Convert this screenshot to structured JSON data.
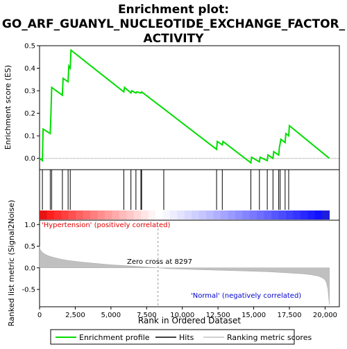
{
  "chart_data": {
    "type": "line",
    "title_lines": [
      "Enrichment plot:",
      "GO_ARF_GUANYL_NUCLEOTIDE_EXCHANGE_FACTOR_",
      "ACTIVITY"
    ],
    "es_panel": {
      "ylabel": "Enrichment score (ES)",
      "ylim": [
        -0.05,
        0.5
      ],
      "yticks": [
        0.0,
        0.1,
        0.2,
        0.3,
        0.4,
        0.5
      ],
      "ytick_labels": [
        "0.0",
        "0.1",
        "0.2",
        "0.3",
        "0.4",
        "0.5"
      ],
      "series": [
        {
          "name": "Enrichment profile",
          "color": "#00dd00",
          "x": [
            0,
            200,
            250,
            750,
            800,
            850,
            1600,
            1650,
            2000,
            2050,
            2150,
            2200,
            5900,
            5950,
            6400,
            6450,
            6750,
            6800,
            7100,
            7150,
            8700,
            12400,
            12450,
            12800,
            12850,
            14800,
            14850,
            15400,
            15450,
            15950,
            16000,
            16350,
            16400,
            16750,
            16800,
            16850,
            16900,
            17200,
            17250,
            17450,
            17500,
            20300
          ],
          "y": [
            0.0,
            -0.01,
            0.13,
            0.11,
            0.21,
            0.315,
            0.28,
            0.355,
            0.34,
            0.41,
            0.4,
            0.48,
            0.295,
            0.315,
            0.29,
            0.3,
            0.29,
            0.295,
            0.29,
            0.295,
            0.22,
            0.04,
            0.075,
            0.06,
            0.075,
            -0.02,
            0.005,
            -0.015,
            0.005,
            -0.01,
            0.015,
            0.0,
            0.03,
            0.015,
            0.05,
            0.065,
            0.085,
            0.07,
            0.11,
            0.1,
            0.145,
            0.0
          ]
        }
      ]
    },
    "hits": {
      "name": "Hits",
      "x": [
        200,
        750,
        850,
        1600,
        2000,
        2150,
        5900,
        6400,
        6750,
        7100,
        7150,
        8700,
        12400,
        12800,
        14800,
        15400,
        15950,
        16350,
        16750,
        16850,
        17200,
        17450
      ]
    },
    "ranked_metric": {
      "ylabel": "Ranked list metric (Signal2Noise)",
      "ylim": [
        -0.9,
        1.1
      ],
      "yticks": [
        -0.5,
        0.0,
        0.5,
        1.0
      ],
      "ytick_labels": [
        "-0.5",
        "0.0",
        "0.5",
        "1.0"
      ],
      "name": "Ranking metric scores",
      "x": [
        0,
        50,
        150,
        300,
        600,
        1000,
        1500,
        2000,
        3000,
        4000,
        5000,
        6000,
        7000,
        8297,
        9000,
        10000,
        11000,
        12000,
        13000,
        14000,
        15000,
        16000,
        17000,
        18000,
        18500,
        19000,
        19500,
        19800,
        20000,
        20100,
        20200,
        20300
      ],
      "y": [
        0.5,
        0.42,
        0.38,
        0.33,
        0.28,
        0.24,
        0.2,
        0.17,
        0.13,
        0.1,
        0.07,
        0.05,
        0.03,
        0.0,
        -0.02,
        -0.03,
        -0.04,
        -0.05,
        -0.06,
        -0.07,
        -0.08,
        -0.09,
        -0.11,
        -0.13,
        -0.14,
        -0.16,
        -0.19,
        -0.23,
        -0.28,
        -0.35,
        -0.5,
        -0.85
      ],
      "positive_label": "'Hypertension' (positively correlated)",
      "negative_label": "'Normal' (negatively correlated)",
      "zero_cross_label": "Zero cross at 8297",
      "zero_cross": 8297
    },
    "xaxis": {
      "label": "Rank in Ordered Dataset",
      "xlim": [
        0,
        21000
      ],
      "ticks": [
        0,
        2500,
        5000,
        7500,
        10000,
        12500,
        15000,
        17500,
        20000
      ],
      "tick_labels": [
        "0",
        "2,500",
        "5,000",
        "7,500",
        "10,000",
        "12,500",
        "15,000",
        "17,500",
        "20,000"
      ],
      "n_genes": 20300
    },
    "legend": {
      "position": "bottom",
      "entries": [
        {
          "label": "Enrichment profile",
          "color": "#00dd00"
        },
        {
          "label": "Hits",
          "color": "#000000"
        },
        {
          "label": "Ranking metric scores",
          "color": "#c0c0c0"
        }
      ]
    }
  }
}
